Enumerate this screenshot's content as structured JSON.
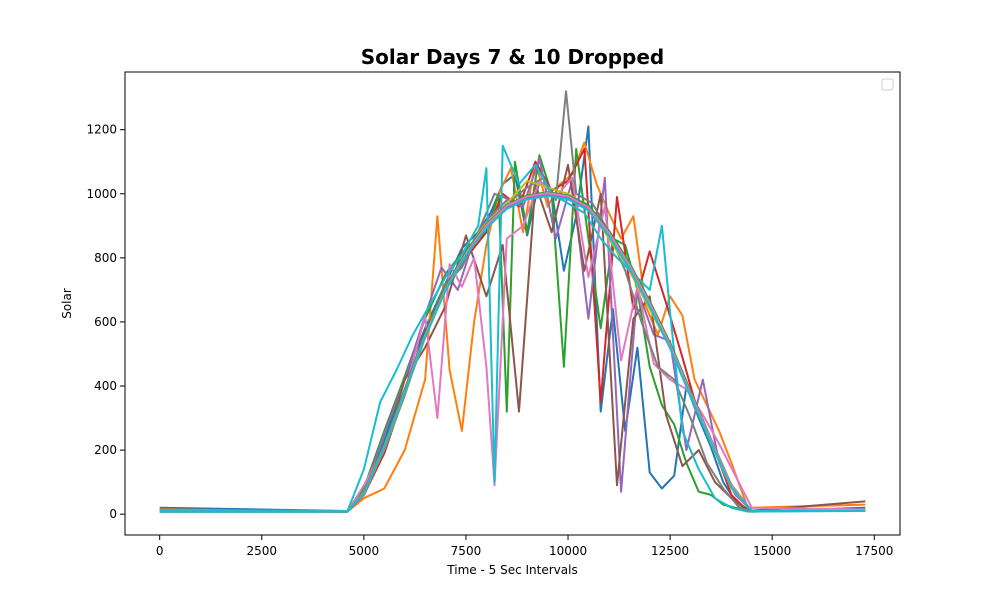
{
  "chart_data": {
    "type": "line",
    "title": "Solar Days 7 & 10 Dropped",
    "xlabel": "Time - 5 Sec Intervals",
    "ylabel": "Solar",
    "xlim": [
      -850,
      18130
    ],
    "ylim": [
      -65,
      1380
    ],
    "xticks": [
      0,
      2500,
      5000,
      7500,
      10000,
      12500,
      15000,
      17500
    ],
    "yticks": [
      0,
      200,
      400,
      600,
      800,
      1000,
      1200
    ],
    "grid": false,
    "legend": "top-right",
    "series": [
      {
        "color": "#1f77b4",
        "x": [
          0,
          4600,
          5000,
          5500,
          6000,
          6500,
          7000,
          7400,
          7800,
          8100,
          8400,
          8700,
          9000,
          9300,
          9600,
          9900,
          10200,
          10500,
          10800,
          11100,
          11400,
          11700,
          12000,
          12300,
          12600,
          12900,
          13200,
          13500,
          13800,
          14100,
          14500,
          17280
        ],
        "y": [
          20,
          10,
          60,
          230,
          420,
          580,
          720,
          830,
          880,
          940,
          1030,
          1060,
          870,
          1040,
          1010,
          760,
          930,
          1210,
          320,
          640,
          260,
          520,
          130,
          80,
          120,
          400,
          300,
          210,
          100,
          40,
          8,
          20
        ]
      },
      {
        "color": "#ff7f0e",
        "x": [
          0,
          4600,
          5000,
          5500,
          6000,
          6500,
          6800,
          7100,
          7400,
          7700,
          8000,
          8300,
          8600,
          8900,
          9200,
          9500,
          9800,
          10100,
          10400,
          10700,
          11000,
          11300,
          11600,
          11900,
          12200,
          12500,
          12800,
          13100,
          13400,
          13700,
          14000,
          14400,
          17280
        ],
        "y": [
          15,
          8,
          50,
          80,
          200,
          420,
          930,
          450,
          260,
          600,
          840,
          1000,
          1080,
          880,
          1100,
          960,
          1030,
          1060,
          1160,
          1030,
          940,
          860,
          930,
          650,
          560,
          680,
          620,
          420,
          340,
          260,
          160,
          20,
          30
        ]
      },
      {
        "color": "#2ca02c",
        "x": [
          0,
          4600,
          5000,
          5500,
          6000,
          6500,
          7000,
          7500,
          8000,
          8300,
          8500,
          8700,
          9000,
          9300,
          9600,
          9900,
          10200,
          10500,
          10800,
          11100,
          11400,
          11700,
          12000,
          12300,
          12600,
          12900,
          13200,
          13500,
          13800,
          14100,
          14400,
          17280
        ],
        "y": [
          10,
          8,
          80,
          260,
          430,
          610,
          750,
          830,
          880,
          1000,
          320,
          1100,
          880,
          1120,
          1000,
          460,
          1140,
          860,
          580,
          860,
          840,
          700,
          460,
          340,
          280,
          160,
          70,
          60,
          30,
          20,
          10,
          15
        ]
      },
      {
        "color": "#d62728",
        "x": [
          0,
          4600,
          5000,
          5500,
          6000,
          6500,
          7000,
          7500,
          8000,
          8400,
          8800,
          9200,
          9600,
          10000,
          10400,
          10800,
          11200,
          11600,
          12000,
          12400,
          12800,
          13200,
          13600,
          14000,
          14400,
          17280
        ],
        "y": [
          10,
          8,
          60,
          190,
          380,
          570,
          700,
          800,
          880,
          1000,
          960,
          1100,
          1010,
          1040,
          1140,
          350,
          990,
          640,
          820,
          660,
          490,
          310,
          200,
          60,
          10,
          12
        ]
      },
      {
        "color": "#9467bd",
        "x": [
          0,
          4600,
          5000,
          5500,
          6000,
          6500,
          6900,
          7300,
          7700,
          8100,
          8500,
          8900,
          9300,
          9700,
          10100,
          10500,
          10900,
          11300,
          11700,
          12100,
          12500,
          12900,
          13300,
          13700,
          14100,
          14500,
          17280
        ],
        "y": [
          8,
          8,
          70,
          250,
          420,
          620,
          770,
          700,
          860,
          930,
          980,
          960,
          1110,
          860,
          1040,
          610,
          1050,
          70,
          700,
          560,
          540,
          200,
          420,
          160,
          60,
          10,
          10
        ]
      },
      {
        "color": "#8c564b",
        "x": [
          0,
          4600,
          5000,
          5500,
          6000,
          6500,
          7000,
          7500,
          8000,
          8400,
          8800,
          9200,
          9600,
          10000,
          10400,
          10800,
          11200,
          11600,
          12000,
          12400,
          12800,
          13200,
          13600,
          14000,
          14400,
          17280
        ],
        "y": [
          10,
          10,
          60,
          200,
          420,
          520,
          650,
          870,
          680,
          840,
          320,
          1030,
          880,
          1090,
          760,
          1000,
          90,
          610,
          680,
          310,
          150,
          200,
          100,
          50,
          10,
          40
        ]
      },
      {
        "color": "#e377c2",
        "x": [
          0,
          4600,
          5000,
          5500,
          6000,
          6500,
          6800,
          7100,
          7400,
          7700,
          8000,
          8200,
          8500,
          8900,
          9300,
          9700,
          10100,
          10500,
          10900,
          11300,
          11700,
          12100,
          12500,
          12900,
          13300,
          13700,
          14100,
          14500,
          17280
        ],
        "y": [
          10,
          8,
          90,
          210,
          380,
          620,
          300,
          780,
          710,
          800,
          460,
          90,
          860,
          900,
          1040,
          990,
          1050,
          740,
          960,
          480,
          710,
          470,
          420,
          390,
          310,
          220,
          120,
          20,
          15
        ]
      },
      {
        "color": "#7f7f7f",
        "x": [
          0,
          4600,
          5000,
          5500,
          6000,
          6500,
          7000,
          7400,
          7800,
          8200,
          8600,
          9000,
          9400,
          9700,
          9950,
          10200,
          10600,
          11000,
          11400,
          11800,
          12200,
          12600,
          13000,
          13400,
          13800,
          14200,
          14500,
          17280
        ],
        "y": [
          10,
          8,
          70,
          200,
          370,
          560,
          720,
          770,
          880,
          1000,
          980,
          1020,
          1050,
          980,
          1320,
          1000,
          970,
          880,
          760,
          600,
          460,
          420,
          300,
          160,
          80,
          20,
          8,
          12
        ]
      },
      {
        "color": "#bcbd22",
        "x": [
          0,
          4600,
          5000,
          5500,
          6000,
          6500,
          7000,
          7500,
          8000,
          8500,
          9000,
          9500,
          10000,
          10500,
          11000,
          11500,
          12000,
          12500,
          13000,
          13500,
          14000,
          14500,
          17280
        ],
        "y": [
          10,
          8,
          70,
          210,
          380,
          560,
          700,
          820,
          910,
          970,
          1040,
          1020,
          1000,
          960,
          860,
          760,
          640,
          520,
          380,
          220,
          80,
          10,
          12
        ]
      },
      {
        "color": "#17becf",
        "x": [
          0,
          4600,
          5000,
          5400,
          5800,
          6200,
          6600,
          7000,
          7400,
          7800,
          8000,
          8200,
          8400,
          8800,
          9200,
          9600,
          10000,
          10400,
          10800,
          11200,
          11600,
          12000,
          12300,
          12500,
          12800,
          13200,
          13600,
          14000,
          14400,
          17280
        ],
        "y": [
          12,
          10,
          140,
          350,
          450,
          560,
          650,
          740,
          810,
          900,
          1080,
          100,
          1150,
          1030,
          1090,
          1000,
          970,
          940,
          860,
          800,
          750,
          700,
          900,
          630,
          260,
          140,
          50,
          20,
          8,
          10
        ]
      },
      {
        "color": "#1f77b4",
        "x": [
          0,
          4600,
          5000,
          5500,
          6000,
          6500,
          7000,
          7500,
          8000,
          8500,
          9000,
          9500,
          10000,
          10500,
          11000,
          11500,
          12000,
          12500,
          13000,
          13500,
          14000,
          14500,
          17280
        ],
        "y": [
          8,
          8,
          65,
          215,
          385,
          560,
          705,
          815,
          900,
          960,
          990,
          1000,
          990,
          960,
          880,
          780,
          660,
          530,
          380,
          230,
          90,
          10,
          10
        ]
      },
      {
        "color": "#ff7f0e",
        "x": [
          0,
          4600,
          5000,
          5500,
          6000,
          6500,
          7000,
          7500,
          8000,
          8500,
          9000,
          9500,
          10000,
          10500,
          11000,
          11500,
          12000,
          12500,
          13000,
          13500,
          14000,
          14500,
          17280
        ],
        "y": [
          8,
          8,
          60,
          205,
          375,
          550,
          700,
          810,
          895,
          955,
          985,
          995,
          985,
          950,
          870,
          770,
          650,
          520,
          370,
          225,
          85,
          10,
          10
        ]
      },
      {
        "color": "#2ca02c",
        "x": [
          0,
          4600,
          5000,
          5500,
          6000,
          6500,
          7000,
          7500,
          8000,
          8500,
          9000,
          9500,
          10000,
          10500,
          11000,
          11500,
          12000,
          12500,
          13000,
          13500,
          14000,
          14500,
          17280
        ],
        "y": [
          8,
          8,
          68,
          220,
          390,
          565,
          710,
          820,
          905,
          965,
          995,
          1005,
          995,
          965,
          885,
          785,
          665,
          535,
          385,
          235,
          92,
          10,
          10
        ]
      },
      {
        "color": "#9467bd",
        "x": [
          0,
          4600,
          5000,
          5500,
          6000,
          6500,
          7000,
          7500,
          8000,
          8500,
          9000,
          9500,
          10000,
          10500,
          11000,
          11500,
          12000,
          12500,
          13000,
          13500,
          14000,
          14500,
          17280
        ],
        "y": [
          8,
          8,
          62,
          210,
          380,
          555,
          700,
          812,
          898,
          958,
          988,
          998,
          988,
          955,
          875,
          775,
          655,
          525,
          375,
          228,
          88,
          10,
          10
        ]
      },
      {
        "color": "#e377c2",
        "x": [
          0,
          4600,
          5000,
          5500,
          6000,
          6500,
          7000,
          7500,
          8000,
          8500,
          9000,
          9500,
          10000,
          10500,
          11000,
          11500,
          12000,
          12500,
          13000,
          13500,
          14000,
          14500,
          17280
        ],
        "y": [
          8,
          8,
          66,
          212,
          382,
          558,
          703,
          814,
          902,
          962,
          992,
          1002,
          992,
          958,
          878,
          778,
          658,
          528,
          378,
          231,
          90,
          10,
          10
        ]
      },
      {
        "color": "#17becf",
        "x": [
          0,
          4600,
          5000,
          5500,
          6000,
          6500,
          7000,
          7500,
          8000,
          8500,
          9000,
          9500,
          10000,
          10500,
          11000,
          11500,
          12000,
          12500,
          13000,
          13500,
          14000,
          14500,
          17280
        ],
        "y": [
          8,
          8,
          64,
          208,
          378,
          553,
          698,
          808,
          893,
          953,
          983,
          993,
          983,
          948,
          868,
          768,
          648,
          518,
          368,
          222,
          84,
          10,
          10
        ]
      }
    ]
  }
}
